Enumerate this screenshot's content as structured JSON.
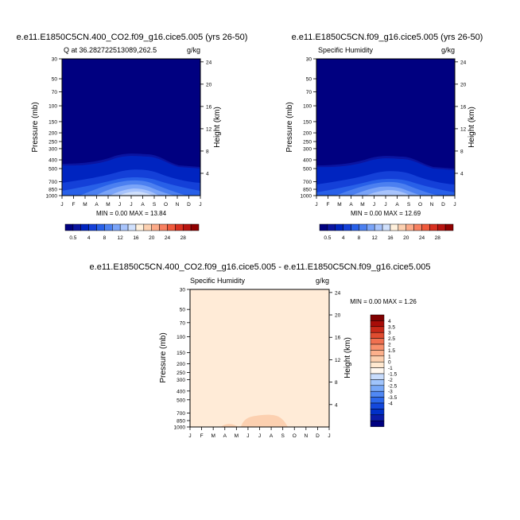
{
  "colors": {
    "cb1": [
      "#000080",
      "#0a14a0",
      "#0024c0",
      "#1440d8",
      "#2860e8",
      "#4c80f0",
      "#7aa4f8",
      "#a8c4fc",
      "#d0e0fc",
      "#fff0dc",
      "#fcd0b0",
      "#fcaa88",
      "#f88060",
      "#f05a3c",
      "#d83020",
      "#b81410",
      "#900000"
    ],
    "cb2": [
      "#000080",
      "#0a1ca8",
      "#0030c8",
      "#1448dc",
      "#2c68ec",
      "#5088f4",
      "#78a8f8",
      "#a0c4fc",
      "#c8dcfc",
      "#fff8f0",
      "#ffe8d0",
      "#fcd0b0",
      "#fcb08c",
      "#f8906c",
      "#f07050",
      "#e04c30",
      "#c82818",
      "#a80c08",
      "#800000"
    ],
    "plot_bg": "#000080",
    "diff_bg": "#ffebd7",
    "diff_blob": "#fcd0b0"
  },
  "months": [
    "J",
    "F",
    "M",
    "A",
    "M",
    "J",
    "J",
    "A",
    "S",
    "O",
    "N",
    "D",
    "J"
  ],
  "pressure_ticks": [
    "30",
    "50",
    "70",
    "100",
    "150",
    "200",
    "250",
    "300",
    "400",
    "500",
    "700",
    "850",
    "1000"
  ],
  "height_ticks": [
    "24",
    "20",
    "16",
    "12",
    "8",
    "4"
  ],
  "cb1_labels": [
    "0.5",
    "4",
    "8",
    "12",
    "16",
    "20",
    "24",
    "28"
  ],
  "cb2_labels": [
    "4",
    "3.5",
    "3",
    "2.5",
    "2",
    "1.5",
    "1",
    "0",
    "-1",
    "-1.5",
    "-2",
    "-2.5",
    "-3",
    "-3.5",
    "-4"
  ],
  "chart_data": [
    {
      "type": "contour",
      "title": "e.e11.E1850C5CN.400_CO2.f09_g16.cice5.005 (yrs 26-50)",
      "subtitle_left": "Q at 36.282722513089,262.5",
      "units": "g/kg",
      "ylabel_left": "Pressure (mb)",
      "ylabel_right": "Height (km)",
      "stats": "MIN =   0.00 MAX =  13.84",
      "min": 0.0,
      "max": 13.84
    },
    {
      "type": "contour",
      "title": "e.e11.E1850C5CN.f09_g16.cice5.005 (yrs 26-50)",
      "subtitle_left": "Specific Humidity",
      "units": "g/kg",
      "ylabel_left": "Pressure (mb)",
      "ylabel_right": "Height (km)",
      "stats": "MIN =   0.00 MAX =  12.69",
      "min": 0.0,
      "max": 12.69
    },
    {
      "type": "contour",
      "title": "e.e11.E1850C5CN.400_CO2.f09_g16.cice5.005 - e.e11.E1850C5CN.f09_g16.cice5.005",
      "subtitle_left": "Specific Humidity",
      "units": "g/kg",
      "ylabel_left": "Pressure (mb)",
      "ylabel_right": "Height (km)",
      "stats": "MIN =   0.00 MAX =   1.26",
      "min": 0.0,
      "max": 1.26
    }
  ]
}
